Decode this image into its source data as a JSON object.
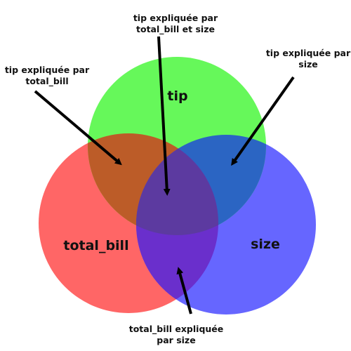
{
  "sets": {
    "tip": "tip",
    "total_bill": "total_bill",
    "size": "size"
  },
  "colors": {
    "tip": "#66f85a",
    "total_bill": "#ff6666",
    "size": "#6666ff",
    "tip_total_bill": "#bc5c28",
    "tip_size": "#2b65c3",
    "total_bill_size": "#6a2fcc",
    "all_three": "#5c3aa0",
    "arrow": "#000000"
  },
  "annotations": {
    "tip_tb_size": {
      "line1": "tip expliquée par",
      "line2": "total_bill et size"
    },
    "tip_tb": {
      "line1": "tip expliquée par",
      "line2": "total_bill"
    },
    "tip_size": {
      "line1": "tip expliquée par",
      "line2": "size"
    },
    "tb_size": {
      "line1": "total_bill expliquée",
      "line2": "par size"
    }
  }
}
